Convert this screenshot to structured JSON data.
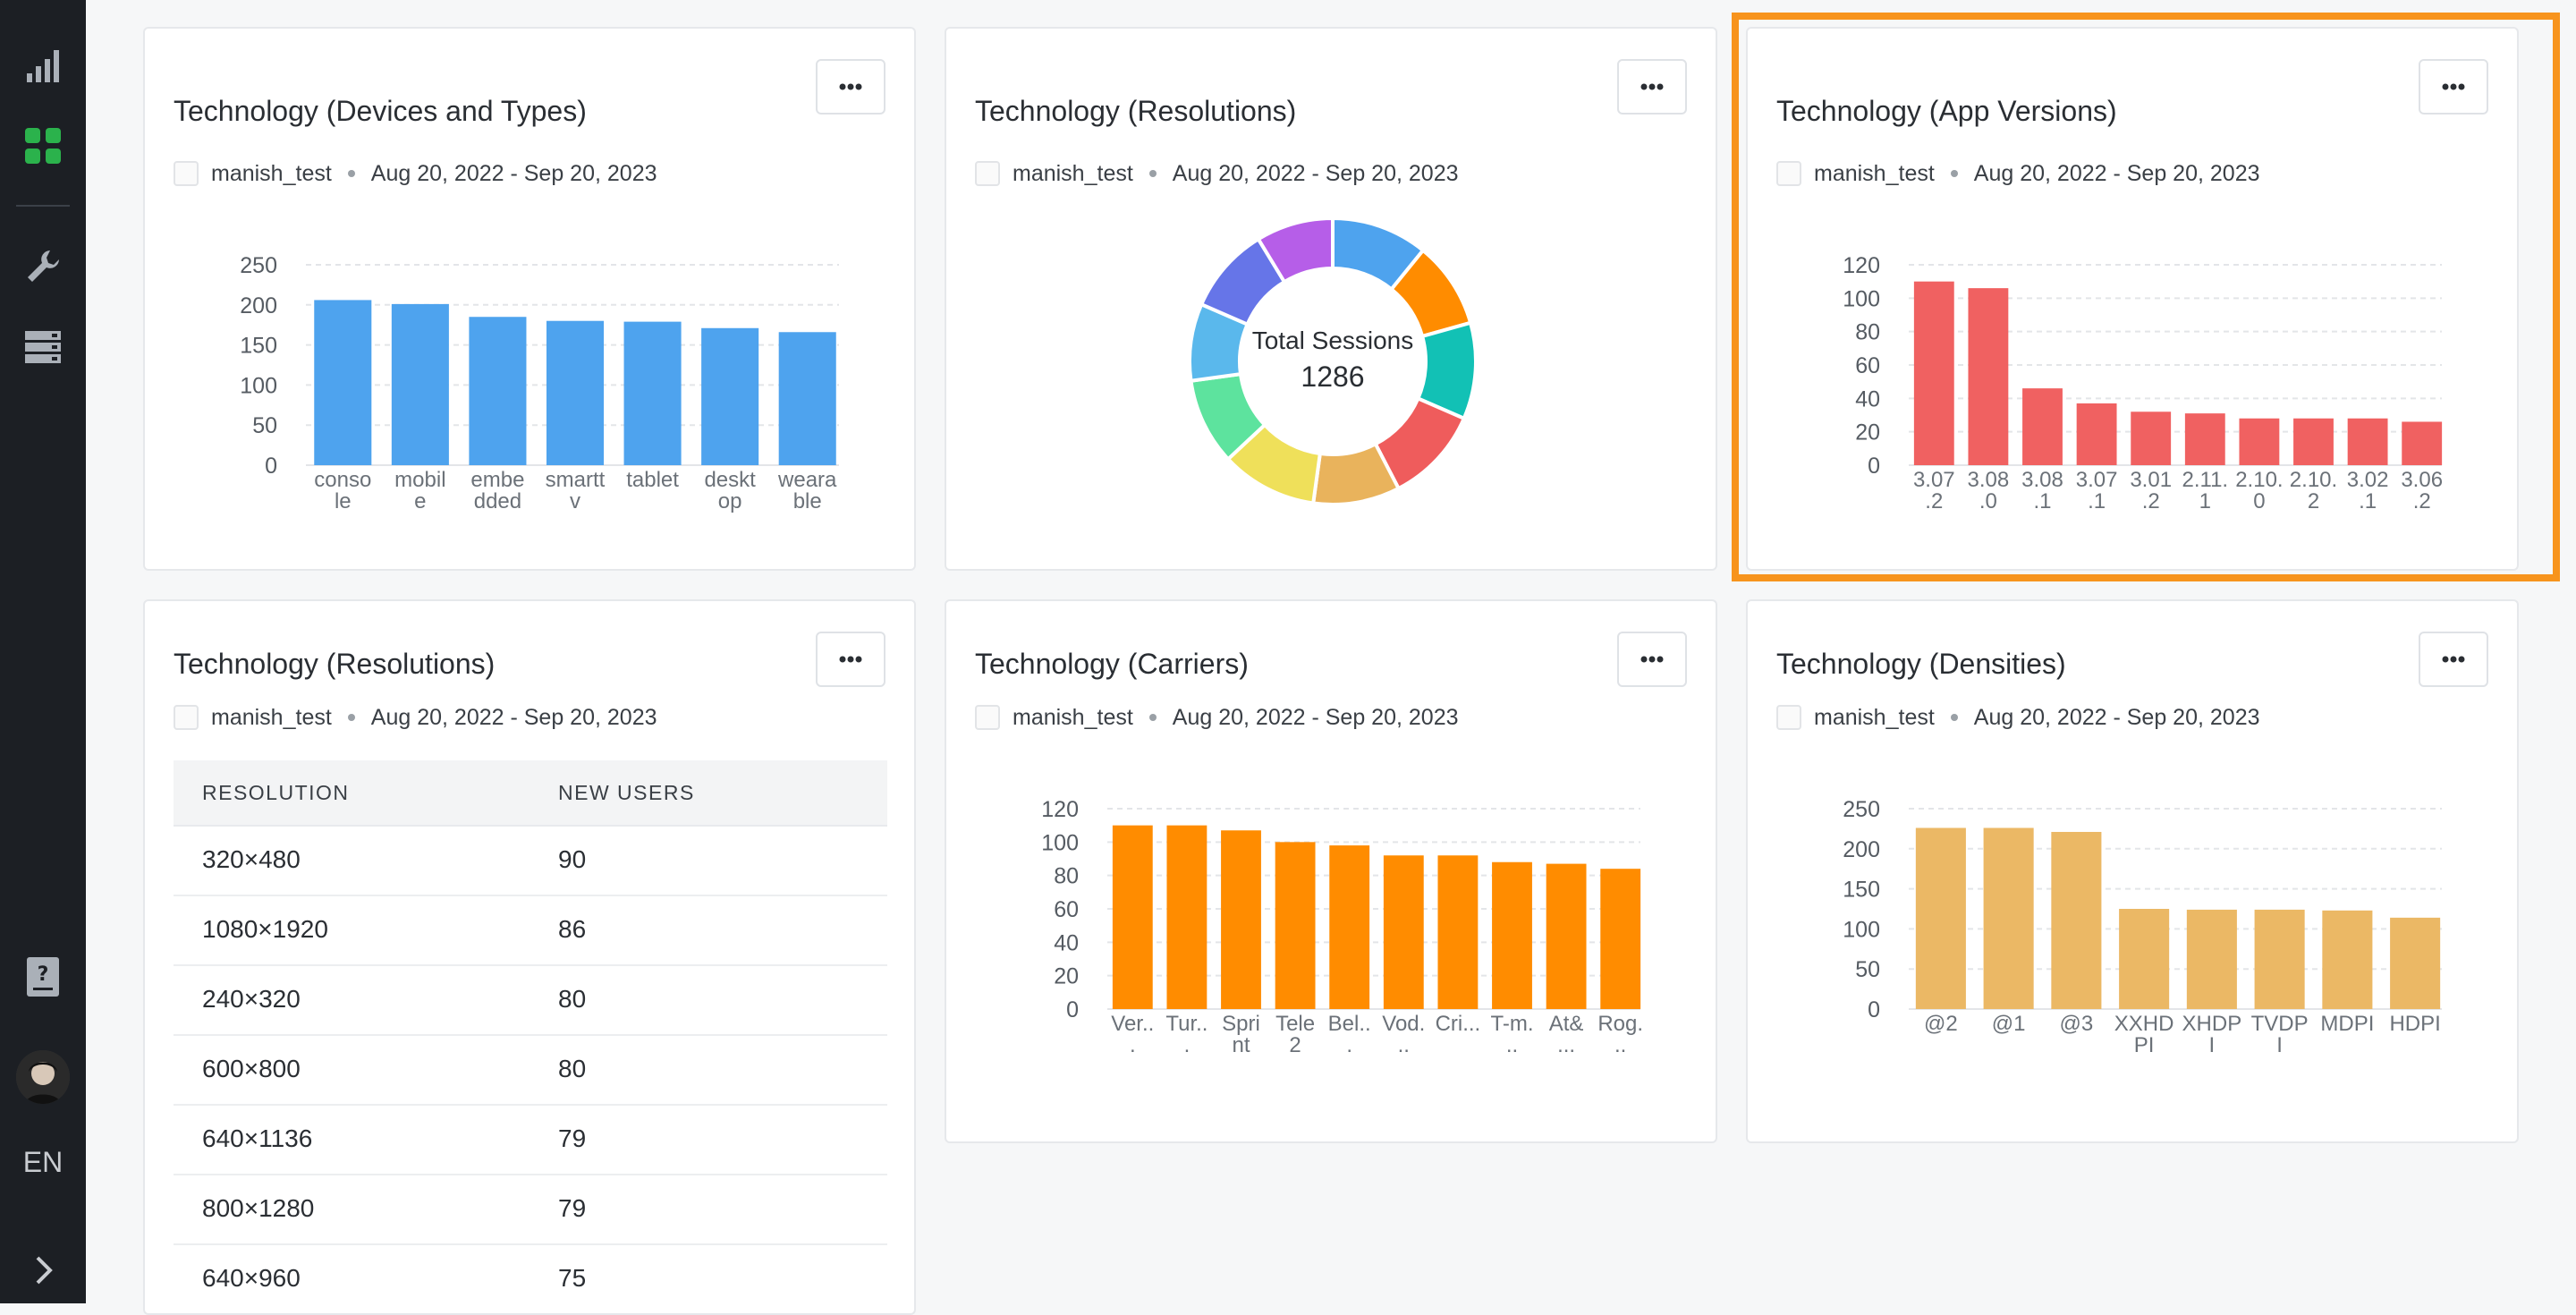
{
  "sidebar": {
    "items": [
      {
        "name": "analytics",
        "icon": "bar-chart-icon"
      },
      {
        "name": "dashboards",
        "icon": "grid-icon",
        "active": true
      },
      {
        "name": "management",
        "icon": "wrench-icon"
      },
      {
        "name": "data",
        "icon": "database-icon"
      }
    ],
    "help_icon": "help-document-icon",
    "language": "EN",
    "expand_icon": "chevron-right-icon"
  },
  "colors": {
    "accent_green": "#2bb24c",
    "highlight": "#f7941d",
    "blue": "#4ea3ee",
    "red": "#f06161",
    "orange": "#ff8c00",
    "gold": "#ebb865"
  },
  "widgets": {
    "devices": {
      "title": "Technology (Devices and Types)",
      "app": "manish_test",
      "date_range": "Aug 20, 2022 - Sep 20, 2023"
    },
    "resolutions_donut": {
      "title": "Technology (Resolutions)",
      "app": "manish_test",
      "date_range": "Aug 20, 2022 - Sep 20, 2023",
      "center_label": "Total Sessions",
      "center_value": "1286"
    },
    "app_versions": {
      "title": "Technology (App Versions)",
      "app": "manish_test",
      "date_range": "Aug 20, 2022 - Sep 20, 2023"
    },
    "resolutions_table": {
      "title": "Technology (Resolutions)",
      "app": "manish_test",
      "date_range": "Aug 20, 2022 - Sep 20, 2023",
      "columns": [
        "RESOLUTION",
        "NEW USERS"
      ],
      "rows": [
        [
          "320×480",
          "90"
        ],
        [
          "1080×1920",
          "86"
        ],
        [
          "240×320",
          "80"
        ],
        [
          "600×800",
          "80"
        ],
        [
          "640×1136",
          "79"
        ],
        [
          "800×1280",
          "79"
        ],
        [
          "640×960",
          "75"
        ]
      ]
    },
    "carriers": {
      "title": "Technology (Carriers)",
      "app": "manish_test",
      "date_range": "Aug 20, 2022 - Sep 20, 2023"
    },
    "densities": {
      "title": "Technology (Densities)",
      "app": "manish_test",
      "date_range": "Aug 20, 2022 - Sep 20, 2023"
    }
  },
  "chart_data": [
    {
      "id": "devices",
      "type": "bar",
      "color": "#4ea3ee",
      "ylim": [
        0,
        250
      ],
      "yticks": [
        0,
        50,
        100,
        150,
        200,
        250
      ],
      "categories": [
        [
          "conso",
          "le"
        ],
        [
          "mobil",
          "e"
        ],
        [
          "embe",
          "dded"
        ],
        [
          "smartt",
          "v"
        ],
        [
          "tablet"
        ],
        [
          "deskt",
          "op"
        ],
        [
          "weara",
          "ble"
        ]
      ],
      "values": [
        206,
        201,
        185,
        180,
        179,
        171,
        166
      ]
    },
    {
      "id": "resolutions_donut",
      "type": "pie",
      "title": "Total Sessions",
      "total": 1286,
      "slices": [
        {
          "color": "#4ea3ee",
          "value": 10
        },
        {
          "color": "#ff8c00",
          "value": 9
        },
        {
          "color": "#12c1b5",
          "value": 10
        },
        {
          "color": "#ef5c5c",
          "value": 10
        },
        {
          "color": "#e9b35c",
          "value": 9
        },
        {
          "color": "#efe05a",
          "value": 10
        },
        {
          "color": "#5de39e",
          "value": 9
        },
        {
          "color": "#5ab8ec",
          "value": 8
        },
        {
          "color": "#6675e8",
          "value": 9
        },
        {
          "color": "#b65ee8",
          "value": 8
        }
      ]
    },
    {
      "id": "app_versions",
      "type": "bar",
      "color": "#f06161",
      "ylim": [
        0,
        120
      ],
      "yticks": [
        0,
        20,
        40,
        60,
        80,
        100,
        120
      ],
      "categories": [
        [
          "3.07",
          ".2"
        ],
        [
          "3.08",
          ".0"
        ],
        [
          "3.08",
          ".1"
        ],
        [
          "3.07",
          ".1"
        ],
        [
          "3.01",
          ".2"
        ],
        [
          "2.11.",
          "1"
        ],
        [
          "2.10.",
          "0"
        ],
        [
          "2.10.",
          "2"
        ],
        [
          "3.02",
          ".1"
        ],
        [
          "3.06",
          ".2"
        ]
      ],
      "values": [
        110,
        106,
        46,
        37,
        32,
        31,
        28,
        28,
        28,
        26
      ]
    },
    {
      "id": "carriers",
      "type": "bar",
      "color": "#ff8c00",
      "ylim": [
        0,
        120
      ],
      "yticks": [
        0,
        20,
        40,
        60,
        80,
        100,
        120
      ],
      "categories": [
        [
          "Ver..",
          "."
        ],
        [
          "Tur..",
          "."
        ],
        [
          "Spri",
          "nt"
        ],
        [
          "Tele",
          "2"
        ],
        [
          "Bel..",
          "."
        ],
        [
          "Vod.",
          ".."
        ],
        [
          "Cri...",
          ""
        ],
        [
          "T-m.",
          ".."
        ],
        [
          "At&",
          "..."
        ],
        [
          "Rog.",
          ".."
        ]
      ],
      "values": [
        110,
        110,
        107,
        100,
        98,
        92,
        92,
        88,
        87,
        84
      ]
    },
    {
      "id": "densities",
      "type": "bar",
      "color": "#ebb865",
      "ylim": [
        0,
        250
      ],
      "yticks": [
        0,
        50,
        100,
        150,
        200,
        250
      ],
      "categories": [
        [
          "@2"
        ],
        [
          "@1"
        ],
        [
          "@3"
        ],
        [
          "XXHD",
          "PI"
        ],
        [
          "XHDP",
          "I"
        ],
        [
          "TVDP",
          "I"
        ],
        [
          "MDPI"
        ],
        [
          "HDPI"
        ]
      ],
      "values": [
        226,
        226,
        221,
        125,
        124,
        124,
        123,
        114
      ]
    }
  ]
}
